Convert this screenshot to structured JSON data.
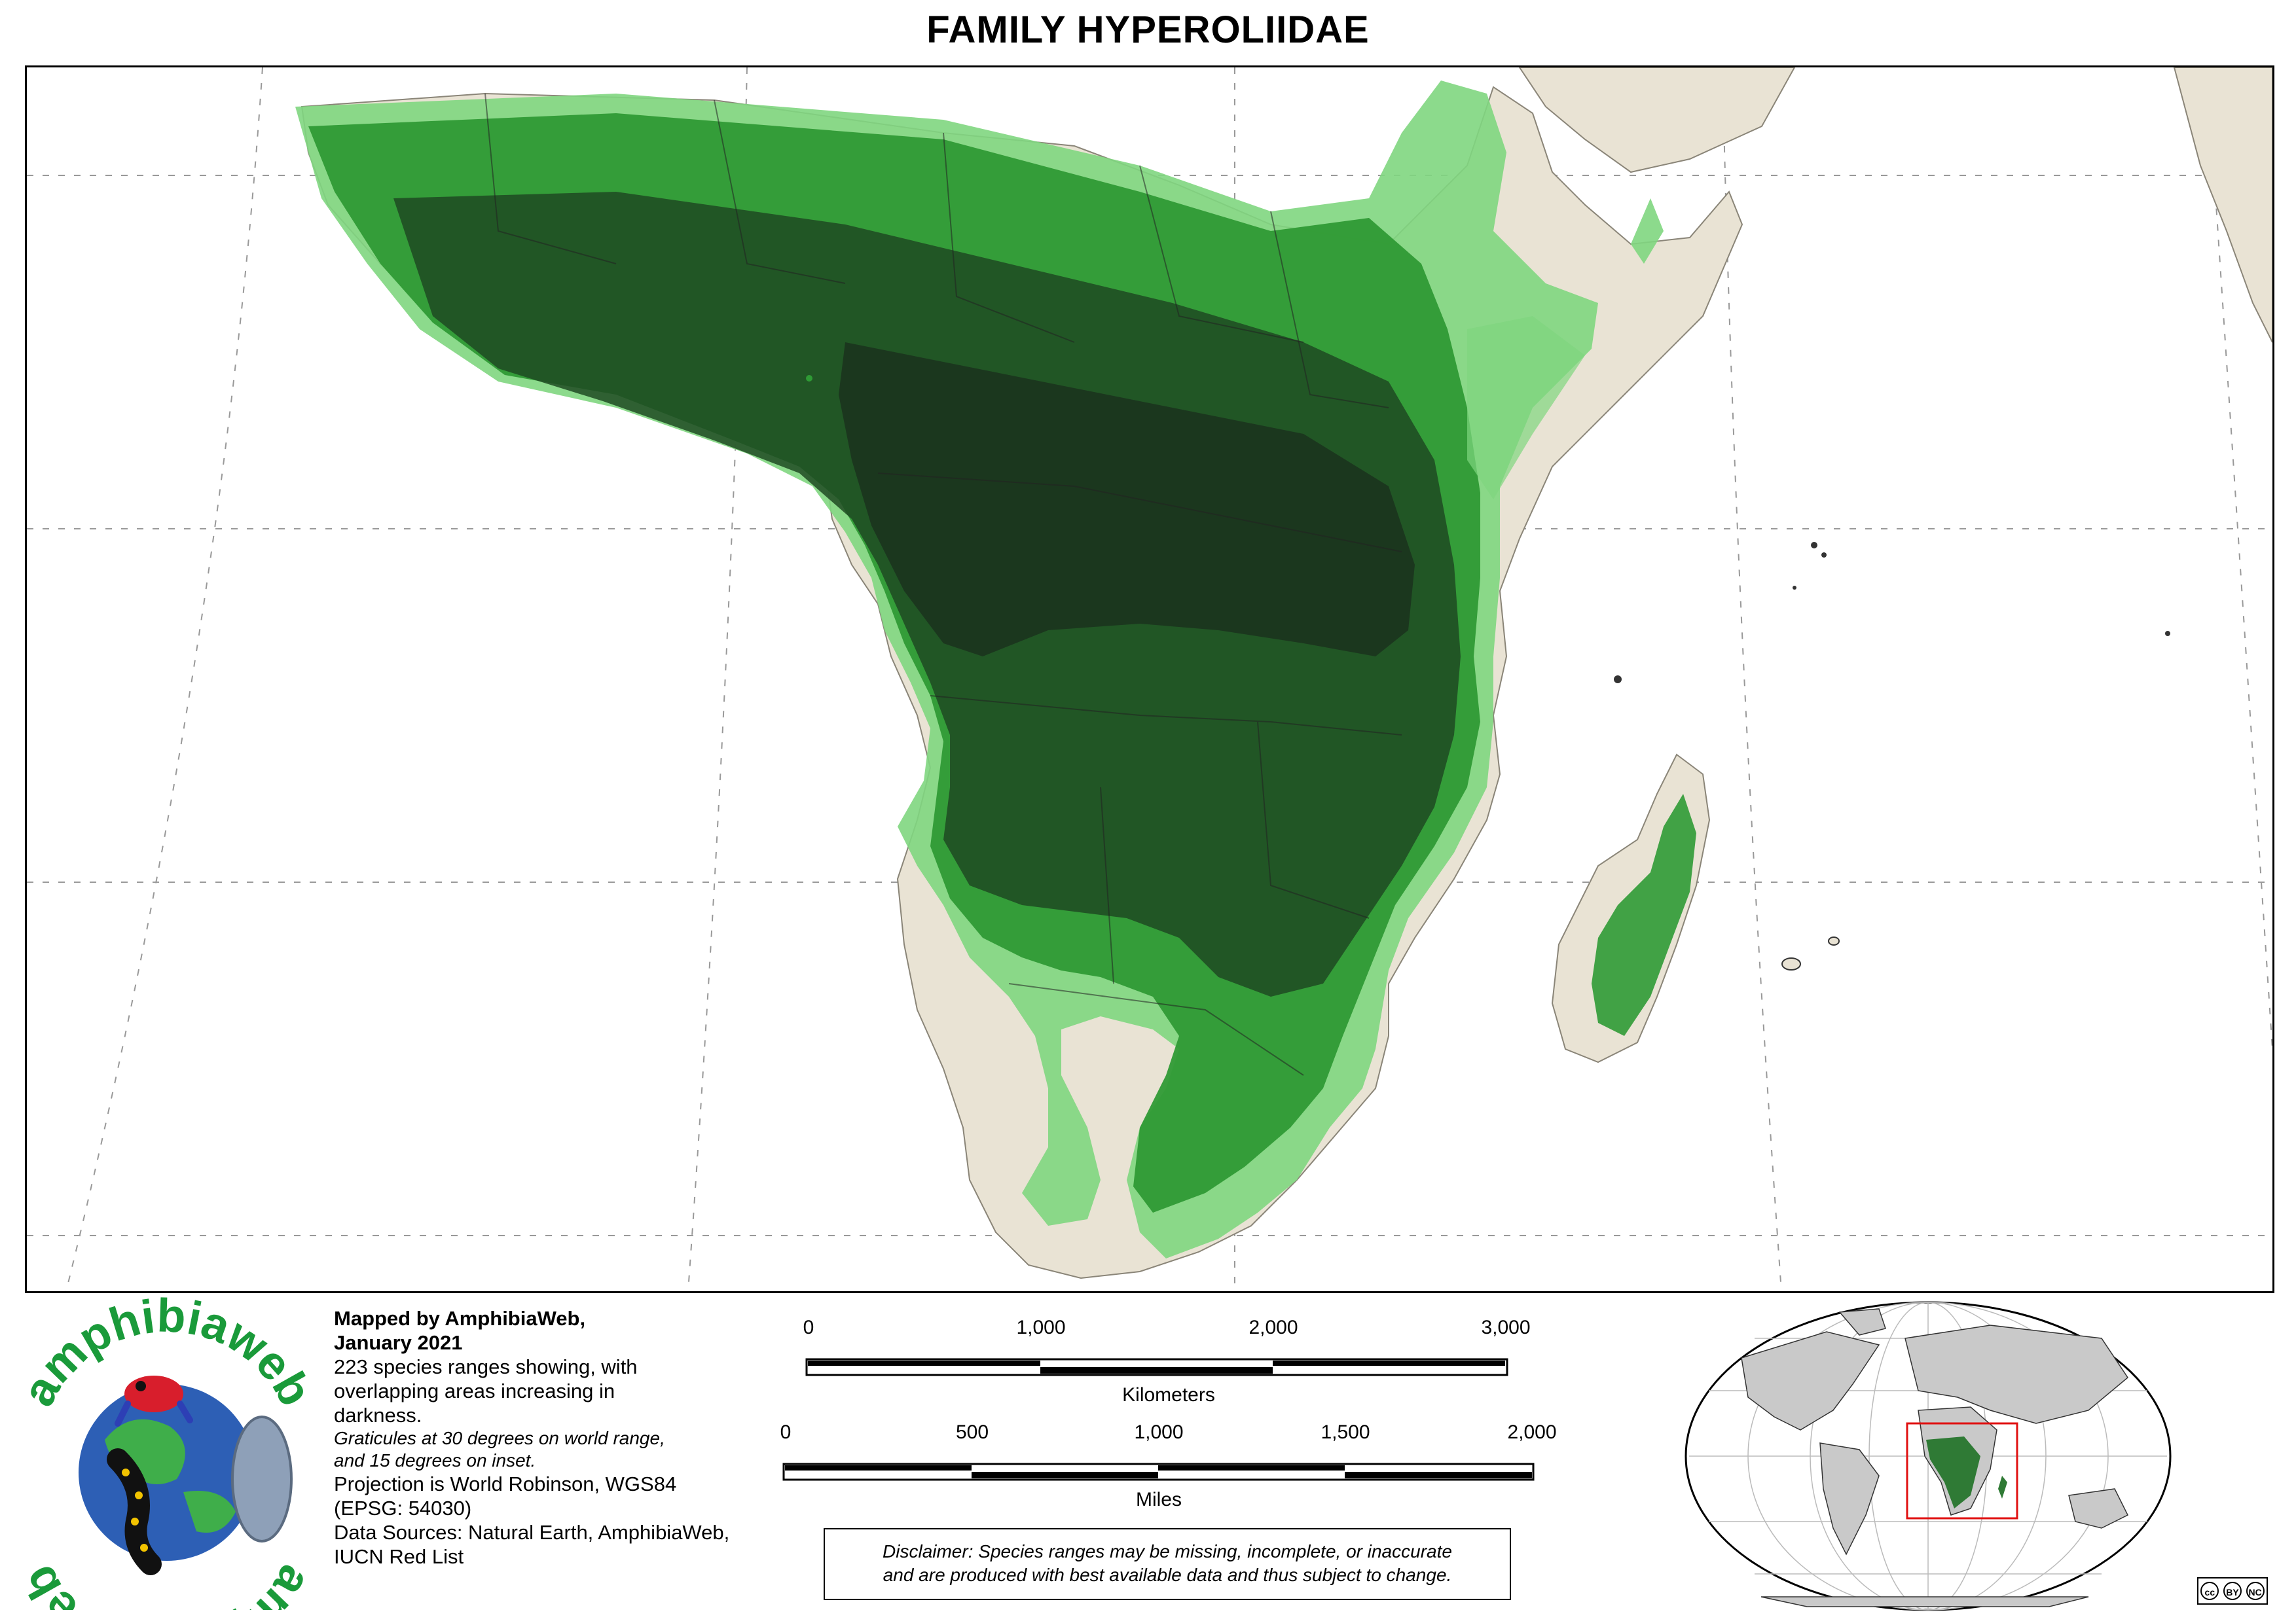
{
  "title": "FAMILY HYPEROLIIDAE",
  "credits": {
    "mapped_by": "Mapped by AmphibiaWeb,",
    "date": "January 2021",
    "line1": "223 species ranges showing, with",
    "line2": "overlapping areas increasing in",
    "line3": "darkness.",
    "grat1": "Graticules at 30 degrees on world range,",
    "grat2": "and 15 degrees on inset.",
    "proj1": "Projection is World Robinson, WGS84",
    "proj2": "(EPSG: 54030)",
    "src1": "Data Sources: Natural Earth, AmphibiaWeb,",
    "src2": "IUCN Red List"
  },
  "scale_km": {
    "labels": [
      "0",
      "1,000",
      "2,000",
      "3,000"
    ],
    "unit": "Kilometers"
  },
  "scale_mi": {
    "labels": [
      "0",
      "500",
      "1,000",
      "1,500",
      "2,000"
    ],
    "unit": "Miles"
  },
  "disclaimer": {
    "line1": "Disclaimer: Species ranges may be missing, incomplete, or inaccurate",
    "line2": "and are produced with best available data and thus subject to change."
  },
  "logo": {
    "text_top": "amphibiaweb",
    "text_bottom": "amphibiaweb"
  },
  "license": {
    "cc": "cc",
    "by": "BY",
    "nc": "NC"
  },
  "colors": {
    "land": "#e9e3d4",
    "ocean": "#ffffff",
    "range_light": "#7fd67f",
    "range_mid": "#2f9a35",
    "range_dark": "#1e4a22",
    "inset_box": "#e01010",
    "logo_green": "#1a9a3a"
  }
}
